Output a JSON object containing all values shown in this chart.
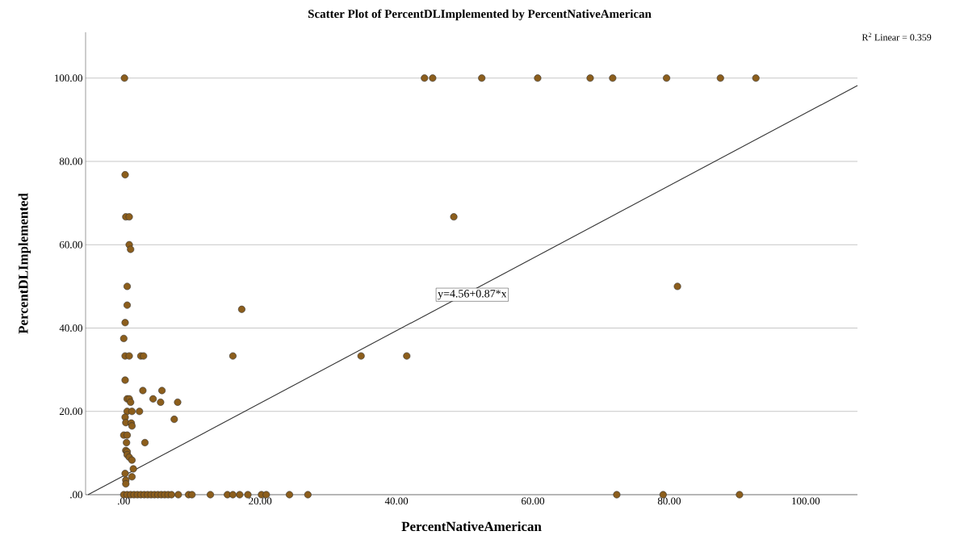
{
  "chart_data": {
    "type": "scatter",
    "title": "Scatter Plot of PercentDLImplemented by PercentNativeAmerican",
    "xlabel": "PercentNativeAmerican",
    "ylabel": "PercentDLImplemented",
    "xlim": [
      -5.6,
      107.6
    ],
    "ylim": [
      0,
      111
    ],
    "xticks": [
      {
        "value": 0,
        "label": ".00"
      },
      {
        "value": 20,
        "label": "20.00"
      },
      {
        "value": 40,
        "label": "40.00"
      },
      {
        "value": 60,
        "label": "60.00"
      },
      {
        "value": 80,
        "label": "80.00"
      },
      {
        "value": 100,
        "label": "100.00"
      }
    ],
    "yticks": [
      {
        "value": 0,
        "label": ".00"
      },
      {
        "value": 20,
        "label": "20.00"
      },
      {
        "value": 40,
        "label": "40.00"
      },
      {
        "value": 60,
        "label": "60.00"
      },
      {
        "value": 80,
        "label": "80.00"
      },
      {
        "value": 100,
        "label": "100.00"
      }
    ],
    "grid": "y",
    "annotations": [
      "R$^{2}$ Linear = 0.359",
      {
        "text": "y=4.56+0.87*x",
        "x": 51.1,
        "y": 48
      }
    ],
    "series": [
      {
        "marker": "circle",
        "color": "#8c5e1c",
        "x": [
          0.1,
          44.1,
          45.3,
          52.5,
          60.7,
          68.4,
          71.7,
          79.6,
          87.5,
          92.7,
          48.4,
          81.2,
          34.8,
          41.5,
          0.2,
          0.3,
          0.8,
          0.8,
          1.0,
          0.5,
          0.5,
          17.3,
          0.2,
          0,
          0.2,
          0.8,
          2.5,
          2.9,
          16.0,
          0.2,
          2.8,
          5.6,
          0.5,
          0.8,
          1.0,
          4.3,
          5.4,
          7.9,
          0.5,
          1.2,
          2.3,
          0.2,
          0.3,
          1.1,
          1.2,
          7.4,
          0,
          0.5,
          0.4,
          3.1,
          0.3,
          0.5,
          0.5,
          0.8,
          1.2,
          1.4,
          0.2,
          1.2,
          0.3,
          0.3,
          0,
          0.5,
          1,
          1.5,
          2,
          2.5,
          3,
          3.5,
          4,
          4.5,
          5,
          5.5,
          6,
          6.5,
          7,
          8,
          9.5,
          10,
          12.7,
          15.2,
          16.0,
          17.0,
          18.2,
          20.2,
          20.9,
          24.3,
          27.0,
          72.3,
          79.1,
          90.3
        ],
        "values": [
          100,
          100,
          100,
          100,
          100,
          100,
          100,
          100,
          100,
          100,
          66.7,
          50,
          33.3,
          33.3,
          76.8,
          66.7,
          66.7,
          60,
          58.9,
          50,
          45.5,
          44.5,
          41.3,
          37.5,
          33.3,
          33.3,
          33.3,
          33.3,
          33.3,
          27.5,
          25,
          25,
          23,
          23,
          22.2,
          23,
          22.2,
          22.2,
          20,
          20,
          20,
          18.6,
          17.3,
          17.2,
          16.5,
          18.1,
          14.3,
          14.3,
          12.5,
          12.5,
          10.6,
          10.3,
          9.6,
          9.0,
          8.3,
          6.2,
          5.1,
          4.3,
          3.5,
          2.6,
          0,
          0,
          0,
          0,
          0,
          0,
          0,
          0,
          0,
          0,
          0,
          0,
          0,
          0,
          0,
          0,
          0,
          0,
          0,
          0,
          0,
          0,
          0,
          0,
          0,
          0,
          0,
          0,
          0,
          0
        ]
      },
      {
        "type": "line",
        "marker": "none",
        "color": "#333333",
        "x": [
          -5.24,
          107.6
        ],
        "values": [
          0,
          98.2
        ]
      }
    ]
  }
}
